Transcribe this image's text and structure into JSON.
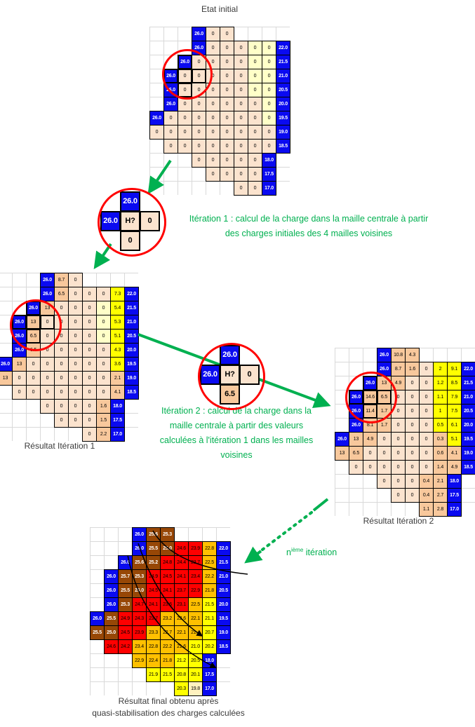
{
  "palette": {
    "b": "#0a0af0",
    "k": "#fbe3ce",
    "o": "#f8c89c",
    "p": "#ffffc8",
    "y": "#ffff00",
    "r": "#fe0000",
    "g": "#ffc000",
    "w": "#974706",
    "f": "#fff2bf",
    "accent_green": "#00b050",
    "circle_red": "#ff0000",
    "gridline": "#d9d9d9"
  },
  "title": "Etat initial",
  "labels": {
    "iter1": "Résultat Itération 1",
    "iter2": "Résultat Itération 2",
    "final_line1": "Résultat final obtenu après",
    "final_line2": "quasi-stabilisation des charges calculées"
  },
  "annotations": {
    "note1_line1": "Itération 1 : calcul de la charge dans la maille centrale à partir",
    "note1_line2": "des charges initiales des 4 mailles voisines",
    "note2_line1": "Itération 2 : calcul de la charge dans la",
    "note2_line2": "maille centrale à partir des valeurs",
    "note2_line3": "calculées à l'itération 1 dans les mailles",
    "note2_line4": "voisines",
    "niter_base": "n",
    "niter_sup": "ième",
    "niter_rest": " itération"
  },
  "grids": [
    {
      "id": "grid-initial",
      "bold": [
        [
          2,
          2
        ],
        [
          3,
          1
        ],
        [
          3,
          2
        ],
        [
          3,
          3
        ],
        [
          4,
          2
        ]
      ],
      "rows": [
        [
          "",
          "",
          "",
          "b:26.0",
          "k:0",
          "k:0",
          "",
          "",
          "",
          ""
        ],
        [
          "",
          "",
          "",
          "b:26.0",
          "k:0",
          "k:0",
          "k:0",
          "p:0",
          "p:0",
          "b:22.0"
        ],
        [
          "",
          "",
          "b:26.0",
          "k:0",
          "k:0",
          "k:0",
          "k:0",
          "p:0",
          "p:0",
          "b:21.5"
        ],
        [
          "",
          "b:26.0",
          "k:0",
          "k:0",
          "k:0",
          "k:0",
          "k:0",
          "p:0",
          "p:0",
          "b:21.0"
        ],
        [
          "",
          "b:26.0",
          "k:0",
          "k:0",
          "k:0",
          "k:0",
          "k:0",
          "p:0",
          "p:0",
          "b:20.5"
        ],
        [
          "",
          "b:26.0",
          "k:0",
          "k:0",
          "k:0",
          "k:0",
          "k:0",
          "k:0",
          "p:0",
          "b:20.0"
        ],
        [
          "b:26.0",
          "k:0",
          "k:0",
          "k:0",
          "k:0",
          "k:0",
          "k:0",
          "k:0",
          "p:0",
          "b:19.5"
        ],
        [
          "k:0",
          "k:0",
          "k:0",
          "k:0",
          "k:0",
          "k:0",
          "k:0",
          "k:0",
          "k:0",
          "b:19.0"
        ],
        [
          "",
          "k:0",
          "k:0",
          "k:0",
          "k:0",
          "k:0",
          "k:0",
          "k:0",
          "k:0",
          "b:18.5"
        ],
        [
          "",
          "",
          "",
          "k:0",
          "k:0",
          "k:0",
          "k:0",
          "k:0",
          "b:18.0",
          ""
        ],
        [
          "",
          "",
          "",
          "",
          "k:0",
          "k:0",
          "k:0",
          "k:0",
          "b:17.5",
          ""
        ],
        [
          "",
          "",
          "",
          "",
          "",
          "",
          "k:0",
          "k:0",
          "b:17.0",
          ""
        ]
      ]
    },
    {
      "id": "grid-iter1",
      "bold": [
        [
          2,
          2
        ],
        [
          3,
          1
        ],
        [
          3,
          2
        ],
        [
          3,
          3
        ],
        [
          4,
          2
        ]
      ],
      "rows": [
        [
          "",
          "",
          "",
          "b:26.0",
          "o:8.7",
          "k:0",
          "",
          "",
          "",
          ""
        ],
        [
          "",
          "",
          "",
          "b:26.0",
          "o:6.5",
          "k:0",
          "k:0",
          "k:0",
          "y:7.3",
          "b:22.0"
        ],
        [
          "",
          "",
          "b:26.0",
          "o:13",
          "k:0",
          "k:0",
          "k:0",
          "p:0",
          "y:5.4",
          "b:21.5"
        ],
        [
          "",
          "b:26.0",
          "o:13",
          "k:0",
          "k:0",
          "k:0",
          "k:0",
          "p:0",
          "y:5.3",
          "b:21.0"
        ],
        [
          "",
          "b:26.0",
          "o:6.5",
          "k:0",
          "k:0",
          "k:0",
          "k:0",
          "p:0",
          "y:5.1",
          "b:20.5"
        ],
        [
          "",
          "b:26.0",
          "o:6.5",
          "k:0",
          "k:0",
          "k:0",
          "k:0",
          "k:0",
          "y:4.3",
          "b:20.0"
        ],
        [
          "b:26.0",
          "o:13",
          "k:0",
          "k:0",
          "k:0",
          "k:0",
          "k:0",
          "k:0",
          "y:3.6",
          "b:19.5"
        ],
        [
          "o:13",
          "k:0",
          "k:0",
          "k:0",
          "k:0",
          "k:0",
          "k:0",
          "k:0",
          "o:2.1",
          "b:19.0"
        ],
        [
          "",
          "k:0",
          "k:0",
          "k:0",
          "k:0",
          "k:0",
          "k:0",
          "k:0",
          "o:4.1",
          "b:18.5"
        ],
        [
          "",
          "",
          "",
          "k:0",
          "k:0",
          "k:0",
          "k:0",
          "o:1.6",
          "b:18.0",
          ""
        ],
        [
          "",
          "",
          "",
          "",
          "k:0",
          "k:0",
          "k:0",
          "o:1.5",
          "b:17.5",
          ""
        ],
        [
          "",
          "",
          "",
          "",
          "",
          "",
          "k:0",
          "o:2.2",
          "b:17.0",
          ""
        ]
      ]
    },
    {
      "id": "grid-iter2",
      "bold": [
        [
          2,
          2
        ],
        [
          3,
          1
        ],
        [
          3,
          2
        ],
        [
          3,
          3
        ],
        [
          4,
          2
        ]
      ],
      "rows": [
        [
          "",
          "",
          "",
          "b:26.0",
          "o:10.8",
          "o:4.3",
          "",
          "",
          "",
          ""
        ],
        [
          "",
          "",
          "",
          "b:26.0",
          "o:8.7",
          "o:1.6",
          "k:0",
          "y:2",
          "y:9.1",
          "b:22.0"
        ],
        [
          "",
          "",
          "b:26.0",
          "o:13",
          "o:4.9",
          "k:0",
          "k:0",
          "y:1.2",
          "y:8.5",
          "b:21.5"
        ],
        [
          "",
          "b:26.0",
          "o:14.6",
          "o:6.5",
          "k:0",
          "k:0",
          "k:0",
          "y:1.1",
          "y:7.9",
          "b:21.0"
        ],
        [
          "",
          "b:26.0",
          "o:11.4",
          "o:1.7",
          "k:0",
          "k:0",
          "k:0",
          "y:1",
          "y:7.5",
          "b:20.5"
        ],
        [
          "",
          "b:26.0",
          "o:8.1",
          "o:1.7",
          "k:0",
          "k:0",
          "k:0",
          "y:0.5",
          "y:6.1",
          "b:20.0"
        ],
        [
          "b:26.0",
          "o:13",
          "o:4.9",
          "k:0",
          "k:0",
          "k:0",
          "k:0",
          "o:0.3",
          "y:5.1",
          "b:19.5"
        ],
        [
          "o:13",
          "o:6.5",
          "k:0",
          "k:0",
          "k:0",
          "k:0",
          "k:0",
          "o:0.6",
          "o:4.1",
          "b:19.0"
        ],
        [
          "",
          "k:0",
          "k:0",
          "k:0",
          "k:0",
          "k:0",
          "k:0",
          "o:1.4",
          "o:4.9",
          "b:18.5"
        ],
        [
          "",
          "",
          "",
          "k:0",
          "k:0",
          "k:0",
          "o:0.4",
          "o:2.1",
          "b:18.0",
          ""
        ],
        [
          "",
          "",
          "",
          "",
          "k:0",
          "k:0",
          "o:0.4",
          "o:2.7",
          "b:17.5",
          ""
        ],
        [
          "",
          "",
          "",
          "",
          "",
          "",
          "o:1.1",
          "o:2.8",
          "b:17.0",
          ""
        ]
      ]
    },
    {
      "id": "grid-final",
      "bold": [],
      "rows": [
        [
          "",
          "",
          "",
          "b:26.0",
          "w:25.6",
          "w:25.3",
          "",
          "",
          "",
          ""
        ],
        [
          "",
          "",
          "",
          "b:26.0",
          "w:25.5",
          "w:25.0",
          "r:24.6",
          "r:23.9",
          "g:22.8",
          "b:22.0"
        ],
        [
          "",
          "",
          "b:26.0",
          "w:25.6",
          "w:25.2",
          "r:24.8",
          "r:24.4",
          "r:23.7",
          "g:22.5",
          "b:21.5"
        ],
        [
          "",
          "b:26.0",
          "w:25.7",
          "w:25.3",
          "r:24.9",
          "r:24.5",
          "r:24.1",
          "r:23.4",
          "g:22.2",
          "b:21.0"
        ],
        [
          "",
          "b:26.0",
          "w:25.5",
          "w:25.0",
          "r:24.5",
          "r:24.1",
          "r:23.7",
          "r:22.9",
          "g:21.8",
          "b:20.5"
        ],
        [
          "",
          "b:26.0",
          "w:25.3",
          "r:24.7",
          "r:24.1",
          "r:23.6",
          "r:23.1",
          "g:22.5",
          "y:21.5",
          "b:20.0"
        ],
        [
          "b:26.0",
          "w:25.5",
          "r:24.9",
          "r:24.3",
          "r:23.7",
          "g:23.2",
          "g:22.6",
          "g:22.1",
          "y:21.1",
          "b:19.5"
        ],
        [
          "w:25.5",
          "w:25.0",
          "r:24.5",
          "r:23.9",
          "g:23.3",
          "g:22.7",
          "g:22.1",
          "g:21.4",
          "y:20.7",
          "b:19.0"
        ],
        [
          "",
          "r:24.6",
          "r:24.2",
          "g:23.4",
          "g:22.8",
          "g:22.2",
          "g:21.6",
          "y:21.0",
          "y:20.2",
          "b:18.5"
        ],
        [
          "",
          "",
          "",
          "g:22.9",
          "g:22.4",
          "g:21.8",
          "y:21.2",
          "y:20.5",
          "b:18.0",
          ""
        ],
        [
          "",
          "",
          "",
          "",
          "y:21.9",
          "y:21.5",
          "y:20.8",
          "y:20.1",
          "b:17.5",
          ""
        ],
        [
          "",
          "",
          "",
          "",
          "",
          "",
          "y:20.3",
          "f:19.8",
          "b:17.0",
          ""
        ]
      ]
    }
  ],
  "insets": [
    {
      "id": "inset1",
      "rows": [
        [
          "",
          "b:26.0",
          ""
        ],
        [
          "b:26.0",
          "k:H?",
          "k:0"
        ],
        [
          "",
          "k:0",
          ""
        ]
      ]
    },
    {
      "id": "inset2",
      "rows": [
        [
          "",
          "b:26.0",
          ""
        ],
        [
          "b:26.0",
          "k:H?",
          "k:0"
        ],
        [
          "",
          "o:6.5",
          ""
        ]
      ]
    }
  ]
}
